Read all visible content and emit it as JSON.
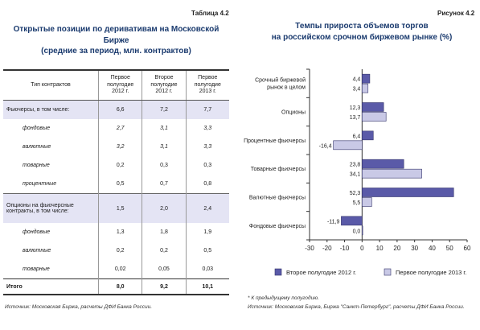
{
  "table": {
    "label": "Таблица 4.2",
    "title_line1": "Открытые позиции по деривативам на Московской Бирже",
    "title_line2": "(средние за период, млн. контрактов)",
    "headers": [
      "Тип контрактов",
      "Первое полугодие 2012 г.",
      "Второе полугодие 2012 г.",
      "Первое полугодие 2013 г."
    ],
    "rows": [
      {
        "label": "Фьючерсы, в том числе:",
        "values": [
          "6,6",
          "7,2",
          "7,7"
        ]
      },
      {
        "label": "фондовые",
        "values": [
          "2,7",
          "3,1",
          "3,3"
        ]
      },
      {
        "label": "валютные",
        "values": [
          "3,2",
          "3,1",
          "3,3"
        ]
      },
      {
        "label": "товарные",
        "values": [
          "0,2",
          "0,3",
          "0,3"
        ]
      },
      {
        "label": "процентные",
        "values": [
          "0,5",
          "0,7",
          "0,8"
        ]
      },
      {
        "label": "Опционы на фьючерсные контракты, в том числе:",
        "values": [
          "1,5",
          "2,0",
          "2,4"
        ]
      },
      {
        "label": "фондовые",
        "values": [
          "1,3",
          "1,8",
          "1,9"
        ]
      },
      {
        "label": "валютные",
        "values": [
          "0,2",
          "0,2",
          "0,5"
        ]
      },
      {
        "label": "товарные",
        "values": [
          "0,02",
          "0,05",
          "0,03"
        ]
      },
      {
        "label": "Итого",
        "values": [
          "8,0",
          "9,2",
          "10,1"
        ]
      }
    ],
    "source": "Источник: Московская Биржа, расчеты ДФИ Банка России."
  },
  "figure": {
    "label": "Рисунок 4.2",
    "title_line1": "Темпы прироста объемов торгов",
    "title_line2": "на российском срочном биржевом рынке (%)",
    "footnote": "* К предыдущему полугодию.",
    "source": "Источник: Московская Биржа, Биржа \"Санкт-Петербург\", расчеты ДФИ Банка России."
  },
  "chart_data": {
    "type": "bar",
    "orientation": "horizontal",
    "categories": [
      [
        "Срочный биржевой",
        "рынок в целом"
      ],
      [
        "Опционы"
      ],
      [
        "Процентные фьючерсы"
      ],
      [
        "Товарные фьючерсы"
      ],
      [
        "Валютные фьючерсы"
      ],
      [
        "Фондовые фьючерсы"
      ]
    ],
    "series": [
      {
        "name": "Второе полугодие 2012 г.",
        "color": "#5a5aa8",
        "values": [
          4.4,
          12.3,
          6.4,
          23.8,
          52.3,
          -11.9
        ],
        "labels": [
          "4,4",
          "12,3",
          "6,4",
          "23,8",
          "52,3",
          "-11,9"
        ]
      },
      {
        "name": "Первое полугодие 2013 г.",
        "color": "#c9c9e6",
        "values": [
          3.4,
          13.7,
          -16.4,
          34.1,
          5.5,
          0.0
        ],
        "labels": [
          "3,4",
          "13,7",
          "-16,4",
          "34,1",
          "5,5",
          "0,0"
        ]
      }
    ],
    "xlim": [
      -30,
      60
    ],
    "xticks": [
      -30,
      -20,
      -10,
      0,
      10,
      20,
      30,
      40,
      50,
      60
    ],
    "grid": false,
    "legend_position": "bottom"
  }
}
